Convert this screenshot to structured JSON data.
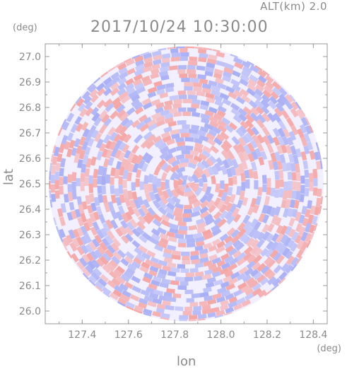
{
  "header": {
    "altitude_label": "ALT(km) 2.0",
    "timestamp": "2017/10/24 10:30:00"
  },
  "chart_data": {
    "type": "heatmap",
    "title": "2017/10/24 10:30:00",
    "subtitle": "ALT(km) 2.0",
    "xlabel": "lon",
    "ylabel": "lat",
    "x_unit": "(deg)",
    "y_unit": "(deg)",
    "xlim": [
      127.24,
      128.46
    ],
    "ylim": [
      25.95,
      27.05
    ],
    "x_ticks": [
      "127.4",
      "127.6",
      "127.8",
      "128.0",
      "128.2",
      "128.4"
    ],
    "y_ticks": [
      "26.0",
      "26.1",
      "26.2",
      "26.3",
      "26.4",
      "26.5",
      "26.6",
      "26.7",
      "26.8",
      "26.9",
      "27.0"
    ],
    "center": {
      "lon": 127.85,
      "lat": 26.5
    },
    "radius_deg_lat": 0.54,
    "colors": {
      "positive": "#f4a6a6",
      "negative": "#a8aef4",
      "neutral": "#f2f0ff"
    },
    "grid": false,
    "legend": "none"
  }
}
